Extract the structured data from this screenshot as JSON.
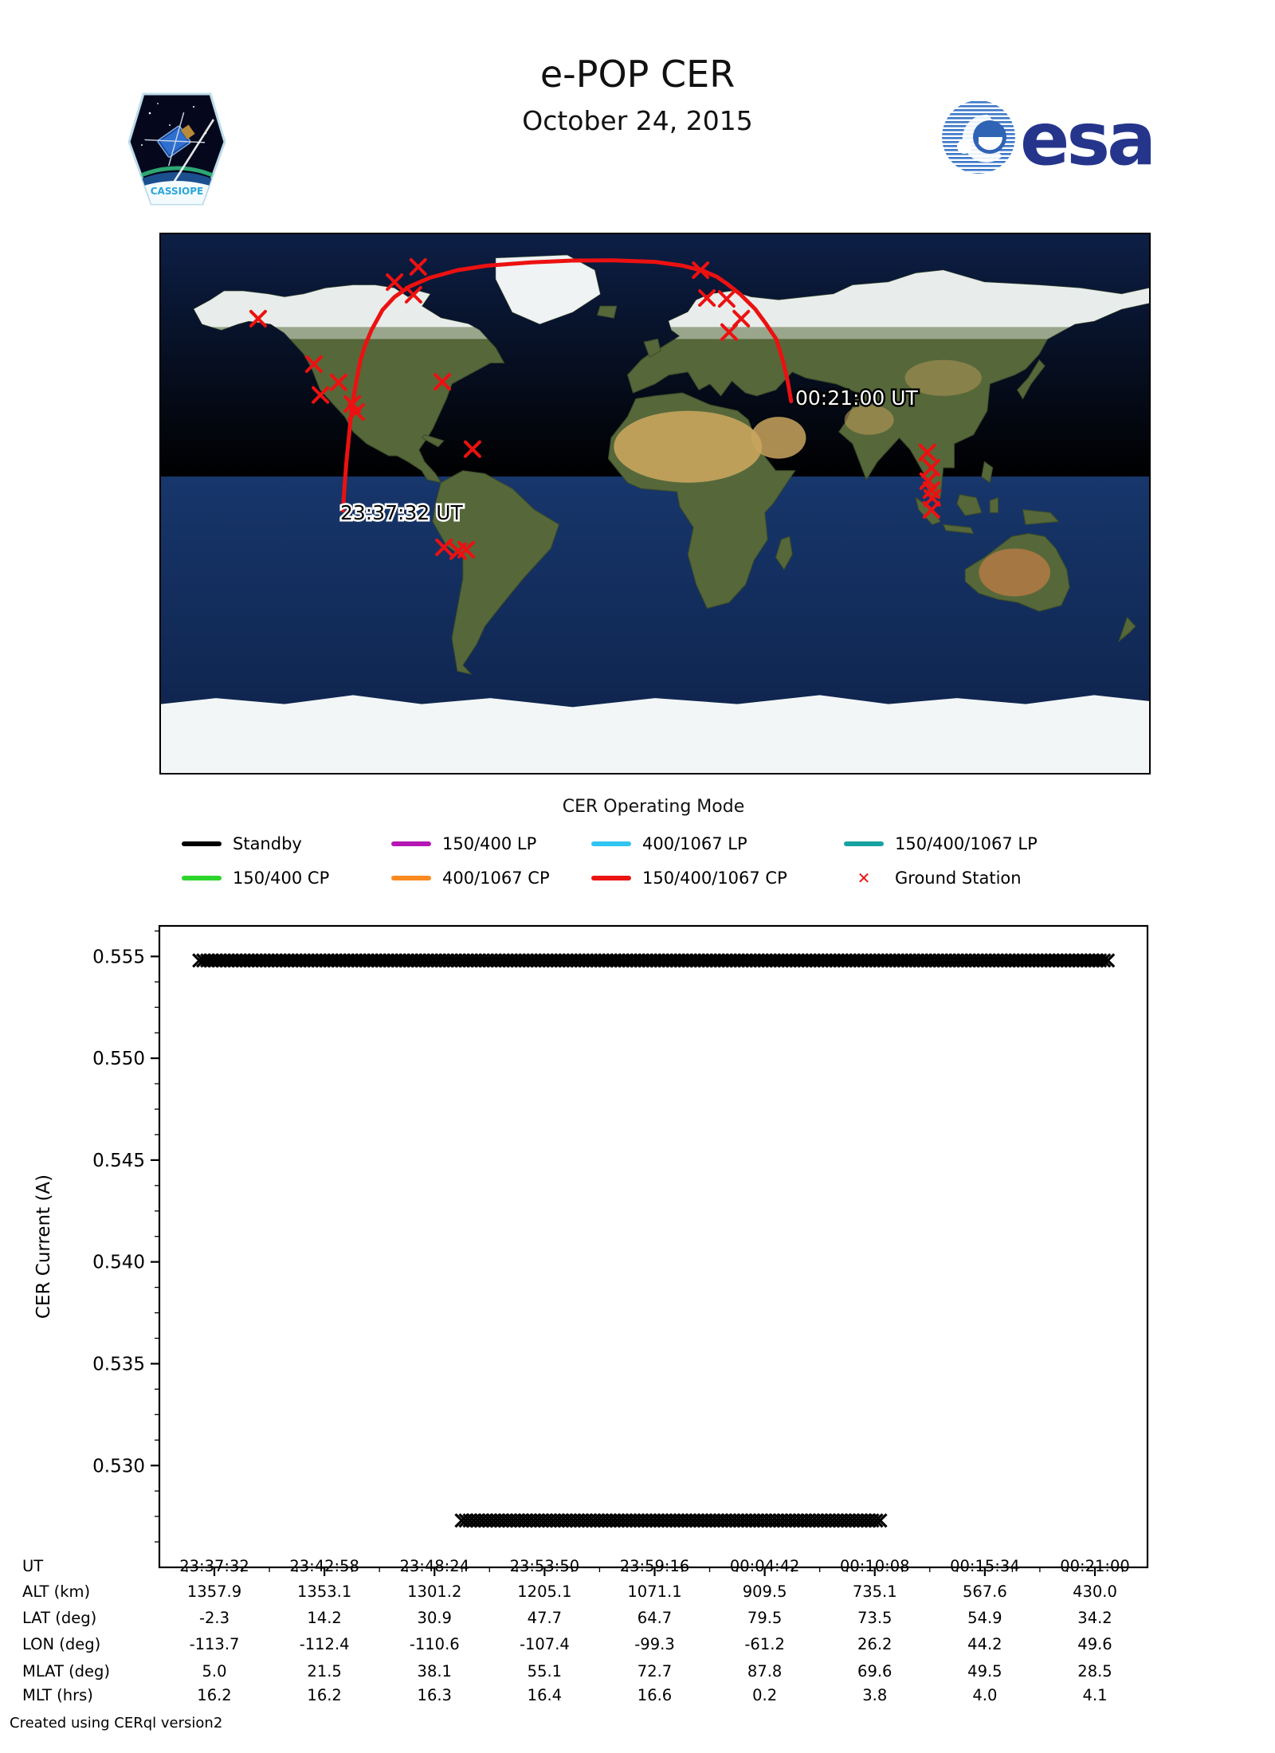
{
  "header": {
    "title": "e-POP CER",
    "date": "October 24, 2015",
    "mission_patch_text": "CASSIOPE",
    "esa_logo_text": "esa"
  },
  "map": {
    "projection": "equirectangular",
    "lon_range": [
      -180,
      180
    ],
    "lat_range": [
      -90,
      90
    ],
    "track_color": "#ec1111",
    "ground_station_color": "#ec1111",
    "start_label": "23:37:32 UT",
    "end_label": "00:21:00 UT",
    "track_points_lat_lon": [
      [
        -2.3,
        -113.7
      ],
      [
        6.0,
        -113.1
      ],
      [
        14.2,
        -112.4
      ],
      [
        22.5,
        -111.5
      ],
      [
        30.9,
        -110.6
      ],
      [
        39.5,
        -109.1
      ],
      [
        47.7,
        -107.4
      ],
      [
        53.0,
        -105.6
      ],
      [
        58.0,
        -103.3
      ],
      [
        64.7,
        -99.3
      ],
      [
        69.0,
        -95.0
      ],
      [
        72.5,
        -89.5
      ],
      [
        75.5,
        -82.0
      ],
      [
        78.0,
        -72.0
      ],
      [
        79.5,
        -61.2
      ],
      [
        80.6,
        -45.0
      ],
      [
        81.2,
        -30.0
      ],
      [
        81.3,
        -15.0
      ],
      [
        80.8,
        0.0
      ],
      [
        79.5,
        10.0
      ],
      [
        77.8,
        17.5
      ],
      [
        75.8,
        22.5
      ],
      [
        73.5,
        26.2
      ],
      [
        70.0,
        31.0
      ],
      [
        65.0,
        36.5
      ],
      [
        60.0,
        40.5
      ],
      [
        54.9,
        44.2
      ],
      [
        48.0,
        46.5
      ],
      [
        41.0,
        48.3
      ],
      [
        34.2,
        49.6
      ]
    ],
    "ground_stations_lat_lon": [
      [
        61.8,
        -144.6
      ],
      [
        79.1,
        -86.3
      ],
      [
        74.0,
        -94.9
      ],
      [
        69.8,
        -88.0
      ],
      [
        46.6,
        -124.3
      ],
      [
        40.5,
        -115.3
      ],
      [
        36.3,
        -121.9
      ],
      [
        33.3,
        -110.3
      ],
      [
        30.6,
        -108.9
      ],
      [
        40.7,
        -77.5
      ],
      [
        18.2,
        -66.5
      ],
      [
        -14.6,
        -76.9
      ],
      [
        -15.9,
        -71.7
      ],
      [
        -15.4,
        -68.8
      ],
      [
        78.0,
        16.6
      ],
      [
        68.7,
        18.9
      ],
      [
        68.4,
        26.1
      ],
      [
        61.8,
        31.4
      ],
      [
        57.3,
        27.0
      ],
      [
        17.1,
        99.2
      ],
      [
        12.0,
        100.7
      ],
      [
        7.5,
        99.5
      ],
      [
        4.5,
        100.7
      ],
      [
        1.9,
        101.0
      ],
      [
        -2.1,
        100.7
      ]
    ]
  },
  "legend": {
    "title": "CER Operating Mode",
    "items": [
      {
        "label": "Standby",
        "color": "#000000",
        "type": "line"
      },
      {
        "label": "150/400 LP",
        "color": "#b517b5",
        "type": "line"
      },
      {
        "label": "400/1067 LP",
        "color": "#2fc4f2",
        "type": "line"
      },
      {
        "label": "150/400/1067 LP",
        "color": "#17a2a2",
        "type": "line"
      },
      {
        "label": "150/400 CP",
        "color": "#2bd52b",
        "type": "line"
      },
      {
        "label": "400/1067 CP",
        "color": "#f98a1f",
        "type": "line"
      },
      {
        "label": "150/400/1067 CP",
        "color": "#ec1313",
        "type": "line"
      },
      {
        "label": "Ground Station",
        "color": "#ec1313",
        "type": "x-marker"
      }
    ]
  },
  "chart_data": {
    "type": "scatter",
    "marker": "x",
    "marker_color": "#000000",
    "ylabel": "CER Current (A)",
    "ylim": [
      0.525,
      0.5565
    ],
    "yticks": [
      "0.530",
      "0.535",
      "0.540",
      "0.545",
      "0.550",
      "0.555"
    ],
    "x_tick_labels": [
      "23:37:32",
      "23:42:58",
      "23:48:24",
      "23:53:50",
      "23:59:16",
      "00:04:42",
      "00:10:08",
      "00:15:34",
      "00:21:00"
    ],
    "grid": false,
    "series": [
      {
        "name": "Standby level",
        "y": 0.5548,
        "t_start": "23:37:32",
        "t_end": "00:21:00",
        "x_frac": [
          -0.017,
          1.017
        ]
      },
      {
        "name": "Operating level",
        "y": 0.5273,
        "t_start": "23:49:30",
        "t_end": "00:10:30",
        "x_frac": [
          0.281,
          0.758
        ]
      }
    ]
  },
  "table": {
    "rows": [
      {
        "label": "UT",
        "values": [
          "23:37:32",
          "23:42:58",
          "23:48:24",
          "23:53:50",
          "23:59:16",
          "00:04:42",
          "00:10:08",
          "00:15:34",
          "00:21:00"
        ]
      },
      {
        "label": "ALT (km)",
        "values": [
          "1357.9",
          "1353.1",
          "1301.2",
          "1205.1",
          "1071.1",
          "909.5",
          "735.1",
          "567.6",
          "430.0"
        ]
      },
      {
        "label": "LAT (deg)",
        "values": [
          "-2.3",
          "14.2",
          "30.9",
          "47.7",
          "64.7",
          "79.5",
          "73.5",
          "54.9",
          "34.2"
        ]
      },
      {
        "label": "LON (deg)",
        "values": [
          "-113.7",
          "-112.4",
          "-110.6",
          "-107.4",
          "-99.3",
          "-61.2",
          "26.2",
          "44.2",
          "49.6"
        ]
      },
      {
        "label": "MLAT (deg)",
        "values": [
          "5.0",
          "21.5",
          "38.1",
          "55.1",
          "72.7",
          "87.8",
          "69.6",
          "49.5",
          "28.5"
        ]
      },
      {
        "label": "MLT (hrs)",
        "values": [
          "16.2",
          "16.2",
          "16.3",
          "16.4",
          "16.6",
          "0.2",
          "3.8",
          "4.0",
          "4.1"
        ]
      }
    ]
  },
  "footer": {
    "credit": "Created using CERql version2"
  }
}
